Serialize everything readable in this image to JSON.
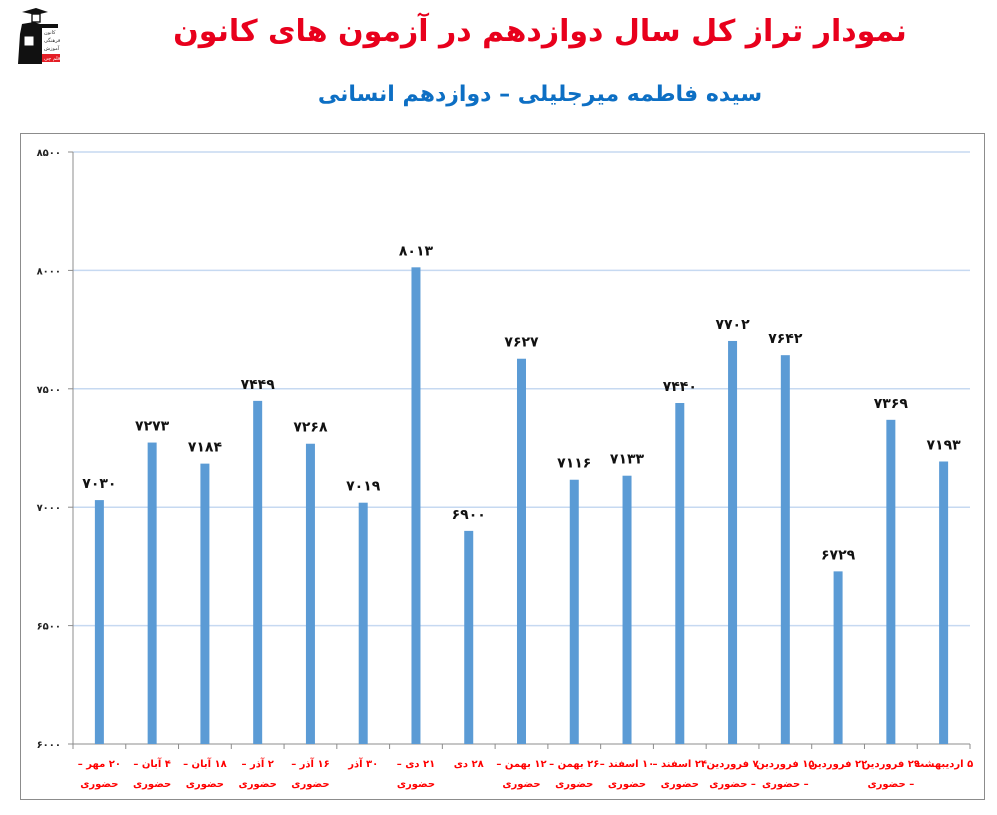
{
  "header": {
    "title": "نمودار تراز کل سال دوازدهم در آزمون های کانون",
    "subtitle": "سیده فاطمه میرجلیلی – دوازدهم انسانی",
    "logo_lines": [
      "کانون",
      "فرهنگی",
      "آموزش",
      "قلم چی"
    ]
  },
  "colors": {
    "title": "#e8001c",
    "subtitle": "#0d6fc4",
    "bar": "#5b9bd5",
    "gridline": "#c6d9f1",
    "axis_label": "#ff0000",
    "frame": "#8c8c8c"
  },
  "chart_data": {
    "type": "bar",
    "title": "نمودار تراز کل سال دوازدهم در آزمون های کانون",
    "subtitle": "سیده فاطمه میرجلیلی – دوازدهم انسانی",
    "xlabel": "",
    "ylabel": "",
    "ylim": [
      6000,
      8500
    ],
    "yticks": [
      6000,
      6500,
      7000,
      7500,
      8000,
      8500
    ],
    "ytick_labels": [
      "۶۰۰۰",
      "۶۵۰۰",
      "۷۰۰۰",
      "۷۵۰۰",
      "۸۰۰۰",
      "۸۵۰۰"
    ],
    "grid": true,
    "legend": "none",
    "categories": [
      "۲۰ مهر – حضوری",
      "۴ آبان – حضوری",
      "۱۸ آبان – حضوری",
      "۲ آذر – حضوری",
      "۱۶ آذر – حضوری",
      "۳۰ آذر",
      "۲۱ دی – حضوری",
      "۲۸ دی",
      "۱۲ بهمن – حضوری",
      "۲۶ بهمن – حضوری",
      "۱۰ اسفند – حضوری",
      "۲۴ اسفند – حضوری",
      "۷ فروردین – حضوری",
      "۱۵ فروردین – حضوری",
      "۲۲ فروردین",
      "۲۹ فروردین – حضوری",
      "۵ اردیبهشت"
    ],
    "category_lines": [
      [
        "۲۰ مهر –",
        "حضوری"
      ],
      [
        "۴ آبان –",
        "حضوری"
      ],
      [
        "۱۸ آبان –",
        "حضوری"
      ],
      [
        "۲ آذر –",
        "حضوری"
      ],
      [
        "۱۶ آذر –",
        "حضوری"
      ],
      [
        "۳۰ آذر",
        ""
      ],
      [
        "۲۱ دی –",
        "حضوری"
      ],
      [
        "۲۸ دی",
        ""
      ],
      [
        "۱۲ بهمن –",
        "حضوری"
      ],
      [
        "۲۶ بهمن –",
        "حضوری"
      ],
      [
        "۱۰ اسفند –",
        "حضوری"
      ],
      [
        "۲۴ اسفند –",
        "حضوری"
      ],
      [
        "۷ فروردین",
        "– حضوری"
      ],
      [
        "۱۵ فروردین",
        "– حضوری"
      ],
      [
        "۲۲ فروردین",
        ""
      ],
      [
        "۲۹ فروردین",
        "– حضوری"
      ],
      [
        "۵ اردیبهشت",
        ""
      ]
    ],
    "values": [
      7030,
      7273,
      7184,
      7449,
      7268,
      7019,
      8013,
      6900,
      7627,
      7116,
      7133,
      7440,
      7702,
      7642,
      6729,
      7369,
      7193
    ],
    "value_labels": [
      "۷۰۳۰",
      "۷۲۷۳",
      "۷۱۸۴",
      "۷۴۴۹",
      "۷۲۶۸",
      "۷۰۱۹",
      "۸۰۱۳",
      "۶۹۰۰",
      "۷۶۲۷",
      "۷۱۱۶",
      "۷۱۳۳",
      "۷۴۴۰",
      "۷۷۰۲",
      "۷۶۴۲",
      "۶۷۲۹",
      "۷۳۶۹",
      "۷۱۹۳"
    ]
  }
}
